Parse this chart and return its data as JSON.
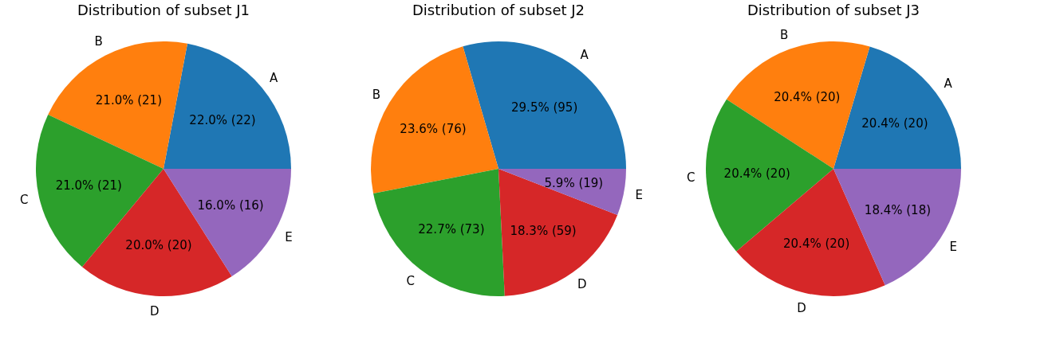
{
  "chart_data": [
    {
      "type": "pie",
      "title": "Distribution of subset J1",
      "categories": [
        "A",
        "B",
        "C",
        "D",
        "E"
      ],
      "values": [
        22,
        21,
        21,
        20,
        16
      ],
      "colors": [
        "#1f77b4",
        "#ff7f0e",
        "#2ca02c",
        "#d62728",
        "#9467bd"
      ],
      "value_labels": [
        "22.0% (22)",
        "21.0% (21)",
        "21.0% (21)",
        "20.0% (20)",
        "16.0% (16)"
      ]
    },
    {
      "type": "pie",
      "title": "Distribution of subset J2",
      "categories": [
        "A",
        "B",
        "C",
        "D",
        "E"
      ],
      "values": [
        95,
        76,
        73,
        59,
        19
      ],
      "colors": [
        "#1f77b4",
        "#ff7f0e",
        "#2ca02c",
        "#d62728",
        "#9467bd"
      ],
      "value_labels": [
        "29.5% (95)",
        "23.6% (76)",
        "22.7% (73)",
        "18.3% (59)",
        "5.9% (19)"
      ]
    },
    {
      "type": "pie",
      "title": "Distribution of subset J3",
      "categories": [
        "A",
        "B",
        "C",
        "D",
        "E"
      ],
      "values": [
        20,
        20,
        20,
        20,
        18
      ],
      "colors": [
        "#1f77b4",
        "#ff7f0e",
        "#2ca02c",
        "#d62728",
        "#9467bd"
      ],
      "value_labels": [
        "20.4% (20)",
        "20.4% (20)",
        "20.4% (20)",
        "20.4% (20)",
        "18.4% (18)"
      ]
    }
  ]
}
